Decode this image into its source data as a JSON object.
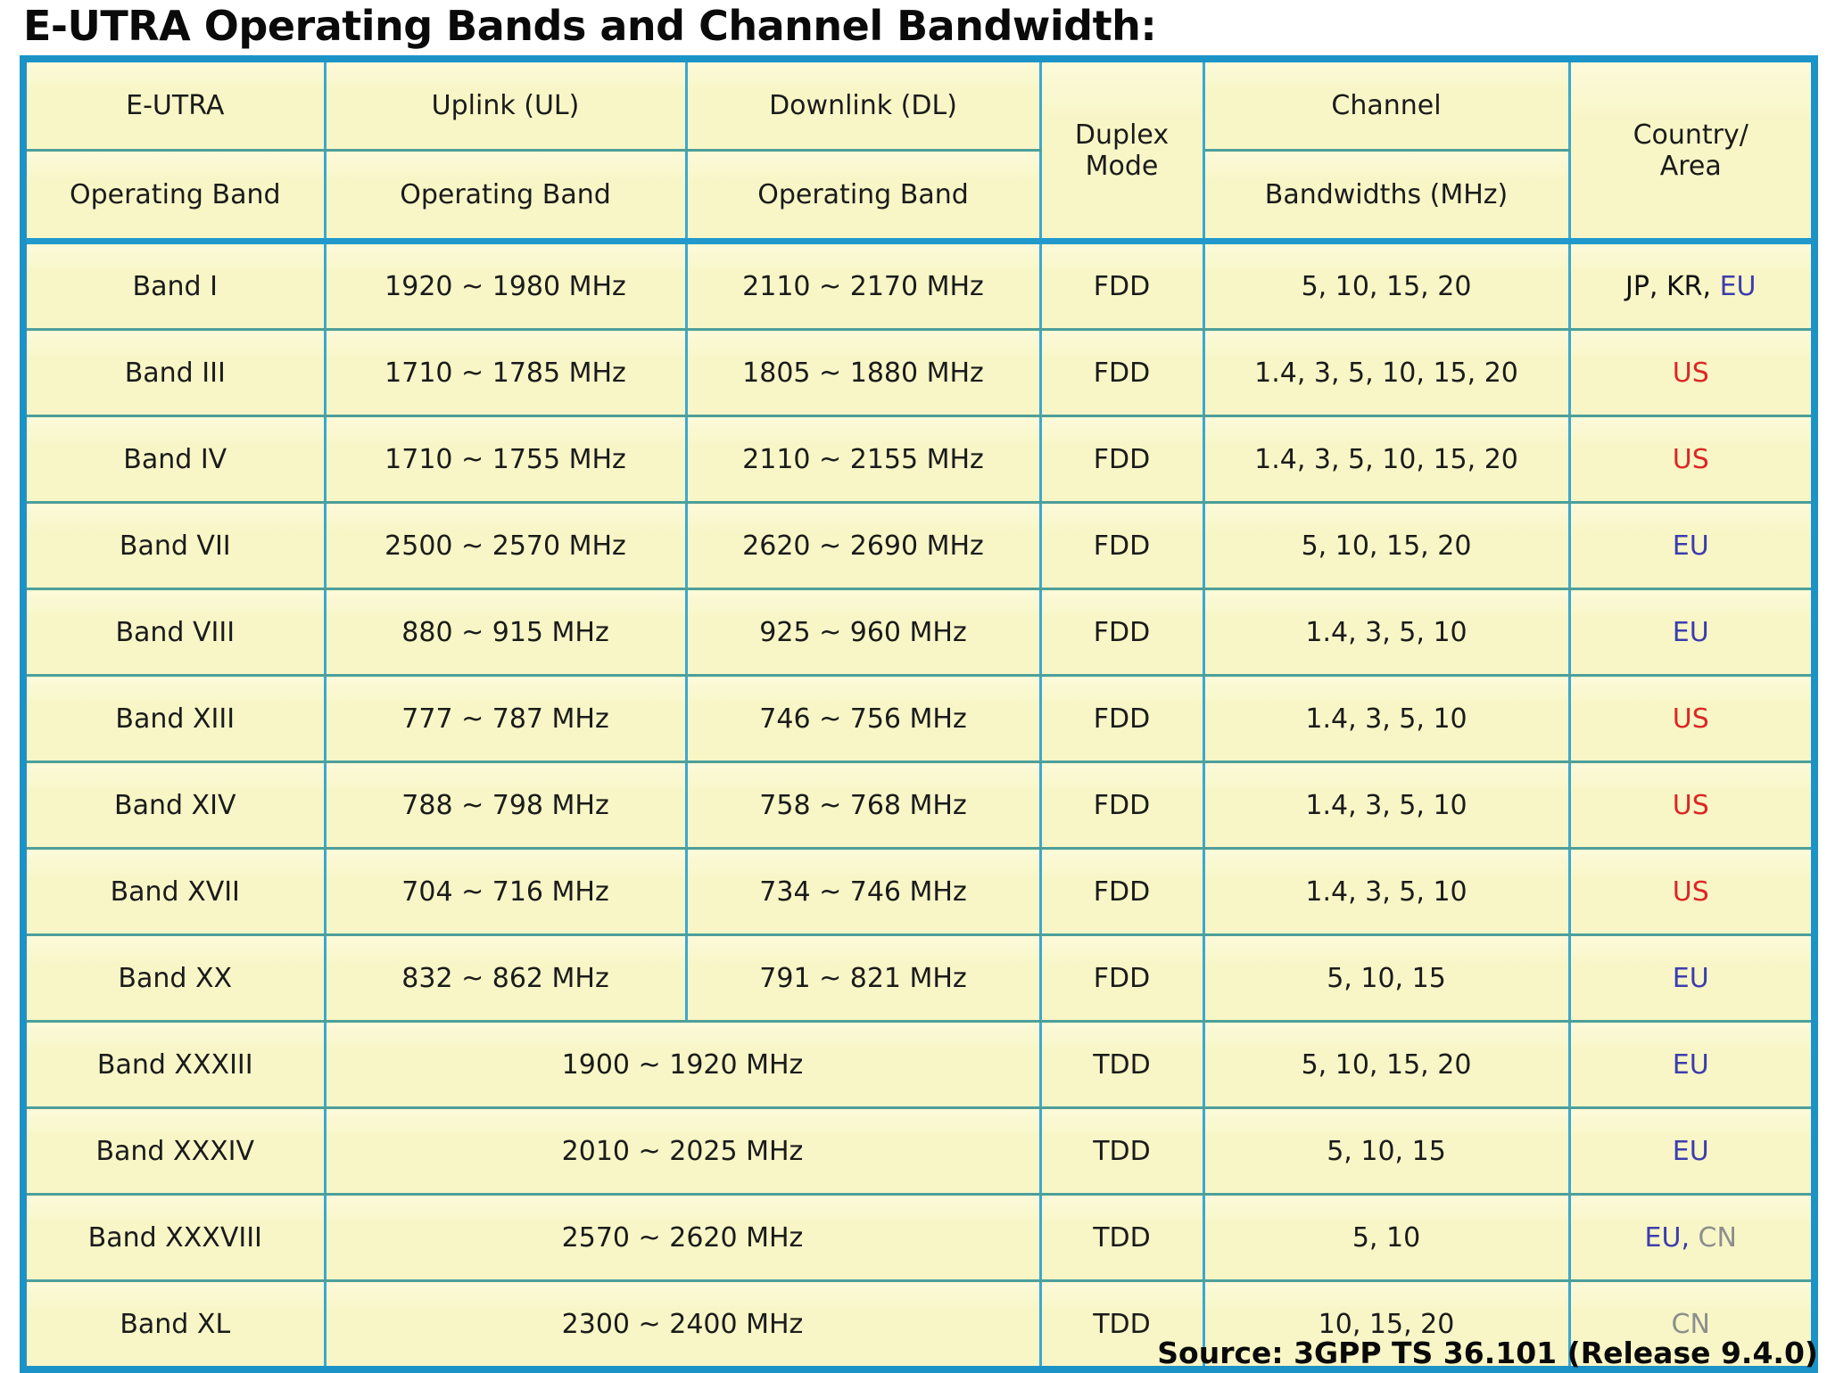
{
  "page": {
    "title": "E-UTRA Operating Bands and Channel Bandwidth:",
    "source": "Source: 3GPP TS 36.101 (Release 9.4.0)"
  },
  "colors": {
    "cell_background": "#f9f7c9",
    "outer_border": "#1c93c7",
    "vertical_rule": "#3aa8cf",
    "horizontal_rule": "#4d9f9b",
    "country_blue": "#3d3dae",
    "country_red": "#db2727",
    "country_gray": "#8e8e8e"
  },
  "header": {
    "eutra_top": "E-UTRA",
    "eutra_bottom": "Operating Band",
    "ul_top": "Uplink (UL)",
    "ul_bottom": "Operating Band",
    "dl_top": "Downlink (DL)",
    "dl_bottom": "Operating Band",
    "duplex_line1": "Duplex",
    "duplex_line2": "Mode",
    "channel_top": "Channel",
    "channel_bottom": "Bandwidths (MHz)",
    "country_line1": "Country/",
    "country_line2": "Area"
  },
  "rows": [
    {
      "band": "Band I",
      "ul": "1920 ~ 1980 MHz",
      "dl": "2110 ~ 2170 MHz",
      "duplex": "FDD",
      "bandwidths": "5, 10, 15, 20",
      "countries": [
        {
          "text": "JP, KR,",
          "color": "black"
        },
        {
          "text": " EU",
          "color": "blue"
        }
      ]
    },
    {
      "band": "Band III",
      "ul": "1710 ~ 1785 MHz",
      "dl": "1805 ~ 1880 MHz",
      "duplex": "FDD",
      "bandwidths": "1.4, 3, 5, 10, 15, 20",
      "countries": [
        {
          "text": "US",
          "color": "red"
        }
      ]
    },
    {
      "band": "Band IV",
      "ul": "1710 ~ 1755 MHz",
      "dl": "2110 ~ 2155 MHz",
      "duplex": "FDD",
      "bandwidths": "1.4, 3, 5, 10, 15, 20",
      "countries": [
        {
          "text": "US",
          "color": "red"
        }
      ]
    },
    {
      "band": "Band VII",
      "ul": "2500 ~ 2570 MHz",
      "dl": "2620 ~ 2690 MHz",
      "duplex": "FDD",
      "bandwidths": "5, 10, 15, 20",
      "countries": [
        {
          "text": "EU",
          "color": "blue"
        }
      ]
    },
    {
      "band": "Band VIII",
      "ul": "880 ~ 915 MHz",
      "dl": "925 ~ 960 MHz",
      "duplex": "FDD",
      "bandwidths": "1.4, 3, 5, 10",
      "countries": [
        {
          "text": "EU",
          "color": "blue"
        }
      ]
    },
    {
      "band": "Band XIII",
      "ul": "777 ~ 787 MHz",
      "dl": "746 ~ 756 MHz",
      "duplex": "FDD",
      "bandwidths": "1.4, 3, 5, 10",
      "countries": [
        {
          "text": "US",
          "color": "red"
        }
      ]
    },
    {
      "band": "Band XIV",
      "ul": "788 ~ 798 MHz",
      "dl": "758 ~ 768 MHz",
      "duplex": "FDD",
      "bandwidths": "1.4, 3, 5, 10",
      "countries": [
        {
          "text": "US",
          "color": "red"
        }
      ]
    },
    {
      "band": "Band XVII",
      "ul": "704 ~ 716 MHz",
      "dl": "734 ~ 746 MHz",
      "duplex": "FDD",
      "bandwidths": "1.4, 3, 5, 10",
      "countries": [
        {
          "text": "US",
          "color": "red"
        }
      ]
    },
    {
      "band": "Band XX",
      "ul": "832 ~ 862 MHz",
      "dl": "791 ~ 821 MHz",
      "duplex": "FDD",
      "bandwidths": "5, 10, 15",
      "countries": [
        {
          "text": "EU",
          "color": "blue"
        }
      ]
    },
    {
      "band": "Band XXXIII",
      "uldl": "1900 ~ 1920 MHz",
      "duplex": "TDD",
      "bandwidths": "5, 10, 15, 20",
      "countries": [
        {
          "text": "EU",
          "color": "blue"
        }
      ]
    },
    {
      "band": "Band XXXIV",
      "uldl": "2010 ~ 2025 MHz",
      "duplex": "TDD",
      "bandwidths": "5, 10, 15",
      "countries": [
        {
          "text": "EU",
          "color": "blue"
        }
      ]
    },
    {
      "band": "Band XXXVIII",
      "uldl": "2570 ~ 2620 MHz",
      "duplex": "TDD",
      "bandwidths": "5, 10",
      "countries": [
        {
          "text": "EU,",
          "color": "blue"
        },
        {
          "text": " CN",
          "color": "gray"
        }
      ]
    },
    {
      "band": "Band XL",
      "uldl": "2300 ~ 2400 MHz",
      "duplex": "TDD",
      "bandwidths": "10, 15, 20",
      "countries": [
        {
          "text": "CN",
          "color": "gray"
        }
      ]
    }
  ]
}
